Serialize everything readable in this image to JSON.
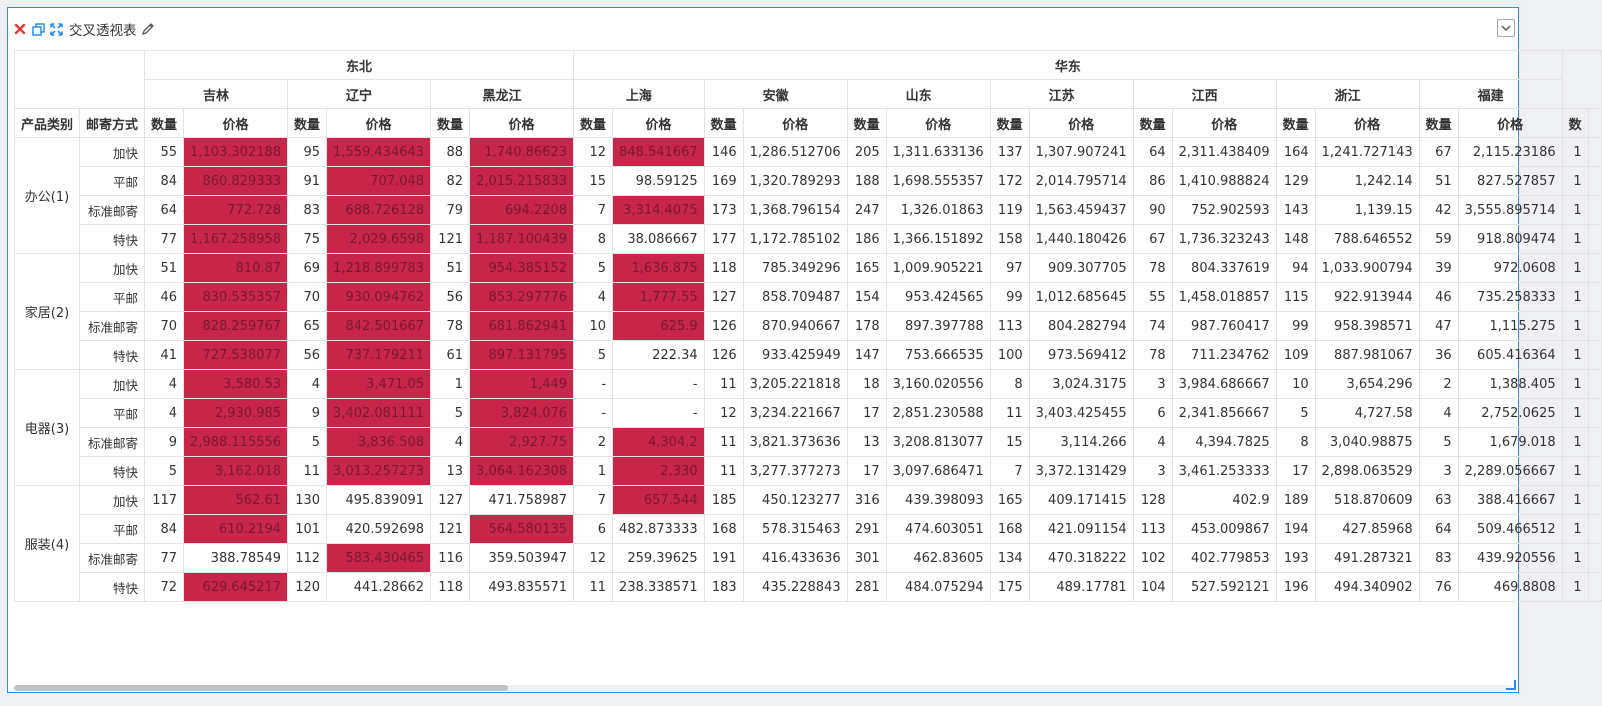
{
  "panel": {
    "title": "交叉透视表"
  },
  "row_headers": {
    "category": "产品类别",
    "shipping": "邮寄方式"
  },
  "measures": {
    "qty": "数量",
    "price": "价格"
  },
  "regions": [
    {
      "name": "东北",
      "provinces": [
        "吉林",
        "辽宁",
        "黑龙江"
      ]
    },
    {
      "name": "华东",
      "provinces": [
        "上海",
        "安徽",
        "山东",
        "江苏",
        "江西",
        "浙江",
        "福建"
      ]
    }
  ],
  "highlight_color": "#c8254a",
  "categories": [
    {
      "name": "办公(1)",
      "rows": [
        {
          "ship": "加快",
          "cells": [
            {
              "q": "55",
              "p": "1,103.302188",
              "h": true
            },
            {
              "q": "95",
              "p": "1,559.434643",
              "h": true
            },
            {
              "q": "88",
              "p": "1,740.86623",
              "h": true
            },
            {
              "q": "12",
              "p": "848.541667",
              "h": true
            },
            {
              "q": "146",
              "p": "1,286.512706"
            },
            {
              "q": "205",
              "p": "1,311.633136"
            },
            {
              "q": "137",
              "p": "1,307.907241"
            },
            {
              "q": "64",
              "p": "2,311.438409"
            },
            {
              "q": "164",
              "p": "1,241.727143"
            },
            {
              "q": "67",
              "p": "2,115.23186"
            }
          ]
        },
        {
          "ship": "平邮",
          "cells": [
            {
              "q": "84",
              "p": "860.829333",
              "h": true
            },
            {
              "q": "91",
              "p": "707.048",
              "h": true
            },
            {
              "q": "82",
              "p": "2,015.215833",
              "h": true
            },
            {
              "q": "15",
              "p": "98.59125"
            },
            {
              "q": "169",
              "p": "1,320.789293"
            },
            {
              "q": "188",
              "p": "1,698.555357"
            },
            {
              "q": "172",
              "p": "2,014.795714"
            },
            {
              "q": "86",
              "p": "1,410.988824"
            },
            {
              "q": "129",
              "p": "1,242.14"
            },
            {
              "q": "51",
              "p": "827.527857"
            }
          ]
        },
        {
          "ship": "标准邮寄",
          "cells": [
            {
              "q": "64",
              "p": "772.728",
              "h": true
            },
            {
              "q": "83",
              "p": "688.726128",
              "h": true
            },
            {
              "q": "79",
              "p": "694.2208",
              "h": true
            },
            {
              "q": "7",
              "p": "3,314.4075",
              "h": true
            },
            {
              "q": "173",
              "p": "1,368.796154"
            },
            {
              "q": "247",
              "p": "1,326.01863"
            },
            {
              "q": "119",
              "p": "1,563.459437"
            },
            {
              "q": "90",
              "p": "752.902593"
            },
            {
              "q": "143",
              "p": "1,139.15"
            },
            {
              "q": "42",
              "p": "3,555.895714"
            }
          ]
        },
        {
          "ship": "特快",
          "cells": [
            {
              "q": "77",
              "p": "1,167.258958",
              "h": true
            },
            {
              "q": "75",
              "p": "2,029.6598",
              "h": true
            },
            {
              "q": "121",
              "p": "1,187.100439",
              "h": true
            },
            {
              "q": "8",
              "p": "38.086667"
            },
            {
              "q": "177",
              "p": "1,172.785102"
            },
            {
              "q": "186",
              "p": "1,366.151892"
            },
            {
              "q": "158",
              "p": "1,440.180426"
            },
            {
              "q": "67",
              "p": "1,736.323243"
            },
            {
              "q": "148",
              "p": "788.646552"
            },
            {
              "q": "59",
              "p": "918.809474"
            }
          ]
        }
      ]
    },
    {
      "name": "家居(2)",
      "rows": [
        {
          "ship": "加快",
          "cells": [
            {
              "q": "51",
              "p": "810.87",
              "h": true
            },
            {
              "q": "69",
              "p": "1,218.899783",
              "h": true
            },
            {
              "q": "51",
              "p": "954.385152",
              "h": true
            },
            {
              "q": "5",
              "p": "1,636.875",
              "h": true
            },
            {
              "q": "118",
              "p": "785.349296"
            },
            {
              "q": "165",
              "p": "1,009.905221"
            },
            {
              "q": "97",
              "p": "909.307705"
            },
            {
              "q": "78",
              "p": "804.337619"
            },
            {
              "q": "94",
              "p": "1,033.900794"
            },
            {
              "q": "39",
              "p": "972.0608"
            }
          ]
        },
        {
          "ship": "平邮",
          "cells": [
            {
              "q": "46",
              "p": "830.535357",
              "h": true
            },
            {
              "q": "70",
              "p": "930.094762",
              "h": true
            },
            {
              "q": "56",
              "p": "853.297776",
              "h": true
            },
            {
              "q": "4",
              "p": "1,777.55",
              "h": true
            },
            {
              "q": "127",
              "p": "858.709487"
            },
            {
              "q": "154",
              "p": "953.424565"
            },
            {
              "q": "99",
              "p": "1,012.685645"
            },
            {
              "q": "55",
              "p": "1,458.018857"
            },
            {
              "q": "115",
              "p": "922.913944"
            },
            {
              "q": "46",
              "p": "735.258333"
            }
          ]
        },
        {
          "ship": "标准邮寄",
          "cells": [
            {
              "q": "70",
              "p": "828.259767",
              "h": true
            },
            {
              "q": "65",
              "p": "842.501667",
              "h": true
            },
            {
              "q": "78",
              "p": "681.862941",
              "h": true
            },
            {
              "q": "10",
              "p": "625.9",
              "h": true
            },
            {
              "q": "126",
              "p": "870.940667"
            },
            {
              "q": "178",
              "p": "897.397788"
            },
            {
              "q": "113",
              "p": "804.282794"
            },
            {
              "q": "74",
              "p": "987.760417"
            },
            {
              "q": "99",
              "p": "958.398571"
            },
            {
              "q": "47",
              "p": "1,115.275"
            }
          ]
        },
        {
          "ship": "特快",
          "cells": [
            {
              "q": "41",
              "p": "727.538077",
              "h": true
            },
            {
              "q": "56",
              "p": "737.179211",
              "h": true
            },
            {
              "q": "61",
              "p": "897.131795",
              "h": true
            },
            {
              "q": "5",
              "p": "222.34"
            },
            {
              "q": "126",
              "p": "933.425949"
            },
            {
              "q": "147",
              "p": "753.666535"
            },
            {
              "q": "100",
              "p": "973.569412"
            },
            {
              "q": "78",
              "p": "711.234762"
            },
            {
              "q": "109",
              "p": "887.981067"
            },
            {
              "q": "36",
              "p": "605.416364"
            }
          ]
        }
      ]
    },
    {
      "name": "电器(3)",
      "rows": [
        {
          "ship": "加快",
          "cells": [
            {
              "q": "4",
              "p": "3,580.53",
              "h": true
            },
            {
              "q": "4",
              "p": "3,471.05",
              "h": true
            },
            {
              "q": "1",
              "p": "1,449",
              "h": true
            },
            {
              "q": "-",
              "p": "-"
            },
            {
              "q": "11",
              "p": "3,205.221818"
            },
            {
              "q": "18",
              "p": "3,160.020556"
            },
            {
              "q": "8",
              "p": "3,024.3175"
            },
            {
              "q": "3",
              "p": "3,984.686667"
            },
            {
              "q": "10",
              "p": "3,654.296"
            },
            {
              "q": "2",
              "p": "1,388.405"
            }
          ]
        },
        {
          "ship": "平邮",
          "cells": [
            {
              "q": "4",
              "p": "2,930.985",
              "h": true
            },
            {
              "q": "9",
              "p": "3,402.081111",
              "h": true
            },
            {
              "q": "5",
              "p": "3,824.076",
              "h": true
            },
            {
              "q": "-",
              "p": "-"
            },
            {
              "q": "12",
              "p": "3,234.221667"
            },
            {
              "q": "17",
              "p": "2,851.230588"
            },
            {
              "q": "11",
              "p": "3,403.425455"
            },
            {
              "q": "6",
              "p": "2,341.856667"
            },
            {
              "q": "5",
              "p": "4,727.58"
            },
            {
              "q": "4",
              "p": "2,752.0625"
            }
          ]
        },
        {
          "ship": "标准邮寄",
          "cells": [
            {
              "q": "9",
              "p": "2,988.115556",
              "h": true
            },
            {
              "q": "5",
              "p": "3,836.508",
              "h": true
            },
            {
              "q": "4",
              "p": "2,927.75",
              "h": true
            },
            {
              "q": "2",
              "p": "4,304.2",
              "h": true
            },
            {
              "q": "11",
              "p": "3,821.373636"
            },
            {
              "q": "13",
              "p": "3,208.813077"
            },
            {
              "q": "15",
              "p": "3,114.266"
            },
            {
              "q": "4",
              "p": "4,394.7825"
            },
            {
              "q": "8",
              "p": "3,040.98875"
            },
            {
              "q": "5",
              "p": "1,679.018"
            }
          ]
        },
        {
          "ship": "特快",
          "cells": [
            {
              "q": "5",
              "p": "3,162.018",
              "h": true
            },
            {
              "q": "11",
              "p": "3,013.257273",
              "h": true
            },
            {
              "q": "13",
              "p": "3,064.162308",
              "h": true
            },
            {
              "q": "1",
              "p": "2,330",
              "h": true
            },
            {
              "q": "11",
              "p": "3,277.377273"
            },
            {
              "q": "17",
              "p": "3,097.686471"
            },
            {
              "q": "7",
              "p": "3,372.131429"
            },
            {
              "q": "3",
              "p": "3,461.253333"
            },
            {
              "q": "17",
              "p": "2,898.063529"
            },
            {
              "q": "3",
              "p": "2,289.056667"
            }
          ]
        }
      ]
    },
    {
      "name": "服装(4)",
      "rows": [
        {
          "ship": "加快",
          "cells": [
            {
              "q": "117",
              "p": "562.61",
              "h": true
            },
            {
              "q": "130",
              "p": "495.839091"
            },
            {
              "q": "127",
              "p": "471.758987"
            },
            {
              "q": "7",
              "p": "657.544",
              "h": true
            },
            {
              "q": "185",
              "p": "450.123277"
            },
            {
              "q": "316",
              "p": "439.398093"
            },
            {
              "q": "165",
              "p": "409.171415"
            },
            {
              "q": "128",
              "p": "402.9"
            },
            {
              "q": "189",
              "p": "518.870609"
            },
            {
              "q": "63",
              "p": "388.416667"
            }
          ]
        },
        {
          "ship": "平邮",
          "cells": [
            {
              "q": "84",
              "p": "610.2194",
              "h": true
            },
            {
              "q": "101",
              "p": "420.592698"
            },
            {
              "q": "121",
              "p": "564.580135",
              "h": true
            },
            {
              "q": "6",
              "p": "482.873333"
            },
            {
              "q": "168",
              "p": "578.315463"
            },
            {
              "q": "291",
              "p": "474.603051"
            },
            {
              "q": "168",
              "p": "421.091154"
            },
            {
              "q": "113",
              "p": "453.009867"
            },
            {
              "q": "194",
              "p": "427.85968"
            },
            {
              "q": "64",
              "p": "509.466512"
            }
          ]
        },
        {
          "ship": "标准邮寄",
          "cells": [
            {
              "q": "77",
              "p": "388.78549"
            },
            {
              "q": "112",
              "p": "583.430465",
              "h": true
            },
            {
              "q": "116",
              "p": "359.503947"
            },
            {
              "q": "12",
              "p": "259.39625"
            },
            {
              "q": "191",
              "p": "416.433636"
            },
            {
              "q": "301",
              "p": "462.83605"
            },
            {
              "q": "134",
              "p": "470.318222"
            },
            {
              "q": "102",
              "p": "402.779853"
            },
            {
              "q": "193",
              "p": "491.287321"
            },
            {
              "q": "83",
              "p": "439.920556"
            }
          ]
        },
        {
          "ship": "特快",
          "cells": [
            {
              "q": "72",
              "p": "629.645217",
              "h": true
            },
            {
              "q": "120",
              "p": "441.28662"
            },
            {
              "q": "118",
              "p": "493.835571"
            },
            {
              "q": "11",
              "p": "238.338571"
            },
            {
              "q": "183",
              "p": "435.228843"
            },
            {
              "q": "281",
              "p": "484.075294"
            },
            {
              "q": "175",
              "p": "489.17781"
            },
            {
              "q": "104",
              "p": "527.592121"
            },
            {
              "q": "196",
              "p": "494.340902"
            },
            {
              "q": "76",
              "p": "469.8808"
            }
          ]
        }
      ]
    }
  ],
  "overflow_col": {
    "header": "数",
    "value": "1"
  }
}
